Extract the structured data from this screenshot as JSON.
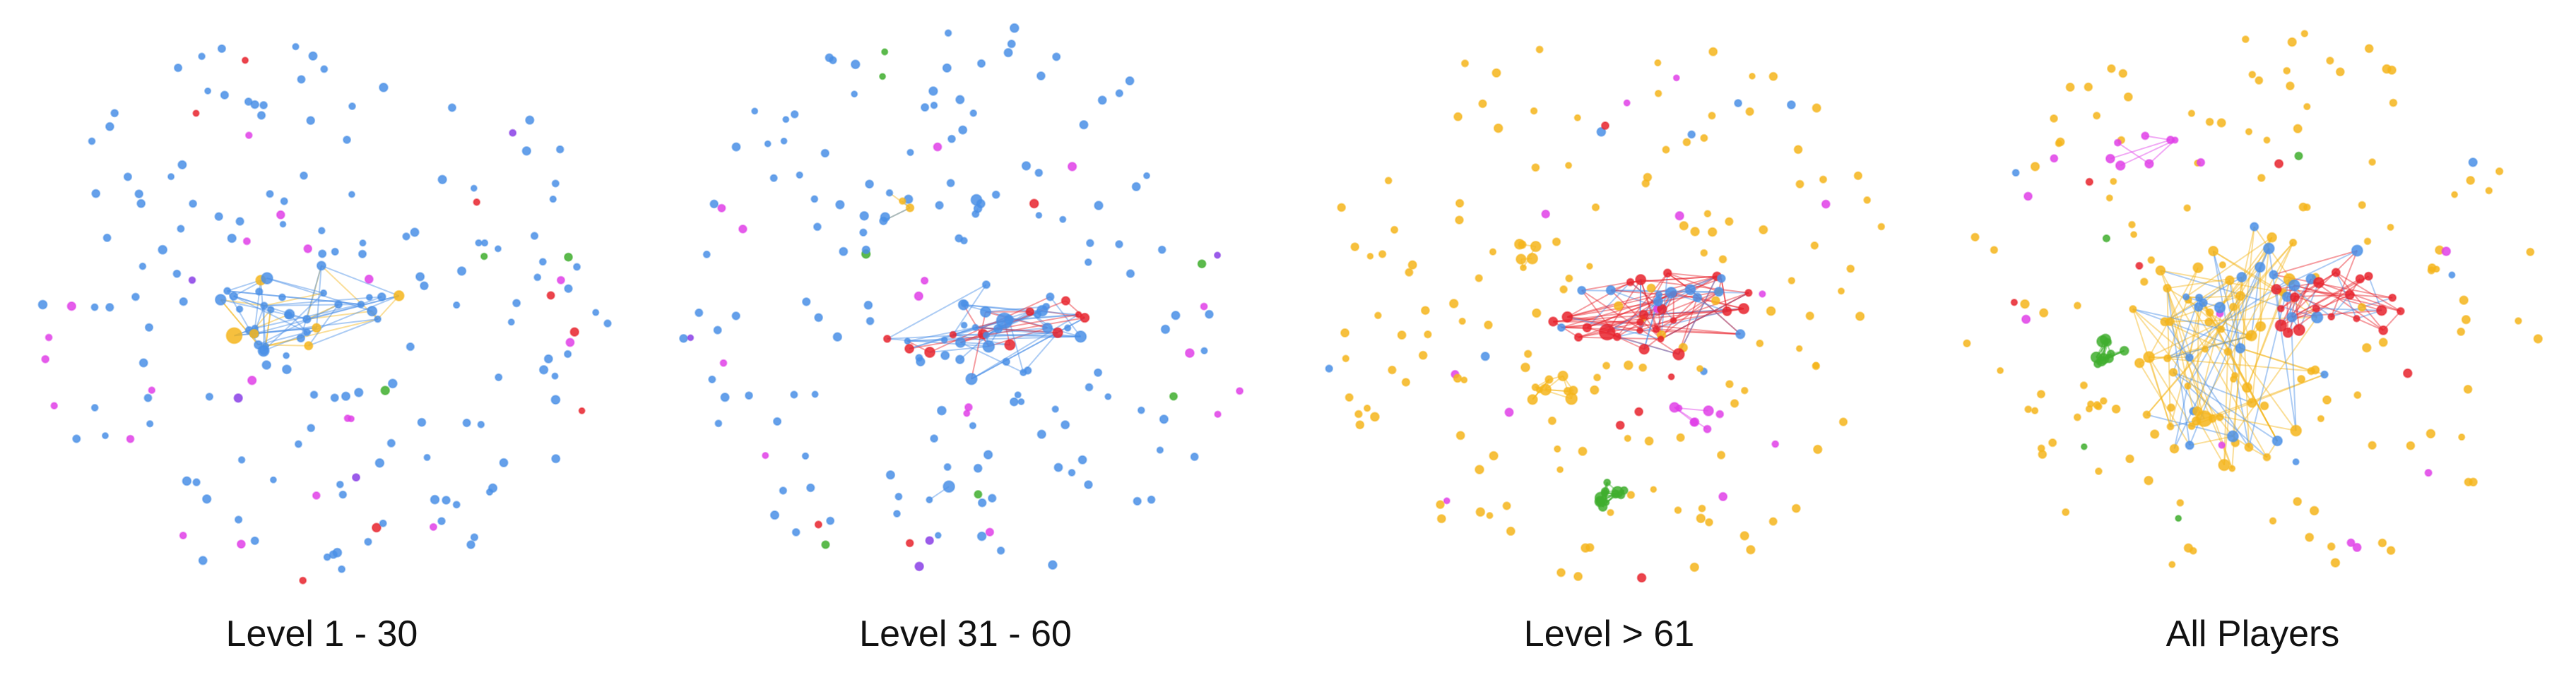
{
  "colors": {
    "blue": "#4a8fe6",
    "orange": "#f5b51c",
    "red": "#e8232d",
    "magenta": "#e040e8",
    "green": "#3fae2e",
    "purple": "#8a3fe6",
    "background": "#ffffff"
  },
  "panels": [
    {
      "caption": "Level 1 - 30",
      "dominant_color": "blue"
    },
    {
      "caption": "Level 31 - 60",
      "dominant_color": "blue"
    },
    {
      "caption": "Level > 61",
      "dominant_color": "orange"
    },
    {
      "caption": "All Players",
      "dominant_color": "orange"
    }
  ]
}
